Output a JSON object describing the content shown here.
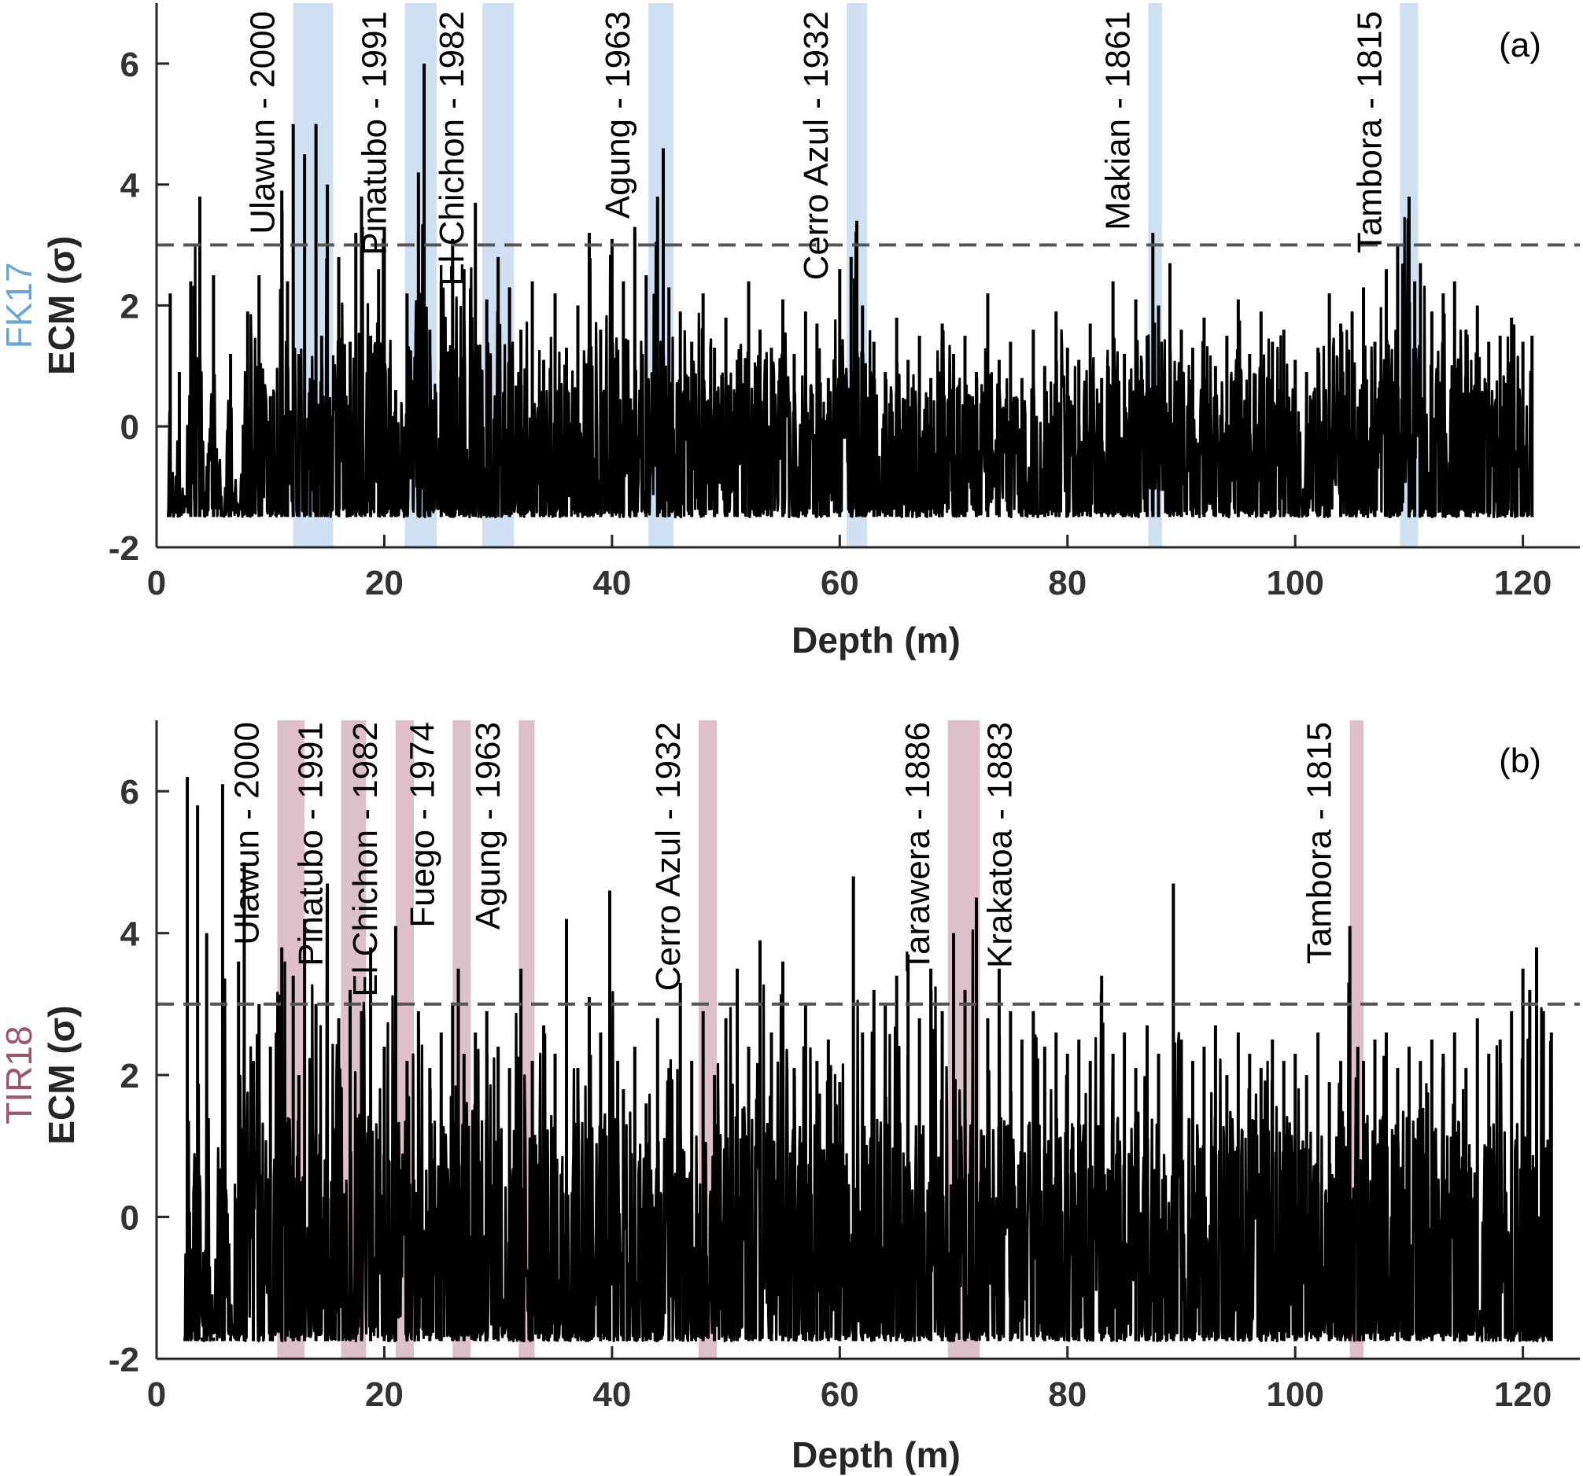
{
  "chart_data": [
    {
      "type": "line",
      "panel_label": "(a)",
      "core_name": "FK17",
      "core_color": "#6ca6d9",
      "band_color": "#cfe0f2",
      "xlabel": "Depth (m)",
      "ylabel": "ECM (σ)",
      "xlim": [
        0,
        125
      ],
      "ylim": [
        -2,
        7
      ],
      "xticks": [
        0,
        20,
        40,
        60,
        80,
        100,
        120
      ],
      "yticks": [
        -2,
        0,
        2,
        4,
        6
      ],
      "threshold": 3,
      "series": [
        {
          "x": [
            1.0,
            1.2,
            1.5,
            2.0,
            2.4,
            3.0,
            3.8,
            4.2,
            5.0,
            5.8,
            6.5,
            7.2,
            8.0,
            9.0,
            10.0,
            11.0,
            11.5,
            12.0,
            12.5,
            13.0,
            13.5,
            14.0,
            14.5,
            15.0,
            16.0,
            17.0,
            17.5,
            18.0,
            18.8,
            19.5,
            20.0,
            21.0,
            22.0,
            23.0,
            23.5,
            24.0,
            25.0,
            26.0,
            27.0,
            28.0,
            29.0,
            30.0,
            31.0,
            32.0,
            33.0,
            34.0,
            35.0,
            36.0,
            37.0,
            38.0,
            39.0,
            40.0,
            41.0,
            42.0,
            43.0,
            44.0,
            44.5,
            45.0,
            46.0,
            47.0,
            48.0,
            49.0,
            50.0,
            51.0,
            52.0,
            53.0,
            54.0,
            55.0,
            56.0,
            57.0,
            58.0,
            59.0,
            60.0,
            61.0,
            61.5,
            62.0,
            63.0,
            64.0,
            65.0,
            66.0,
            67.0,
            68.0,
            69.0,
            70.0,
            71.0,
            72.0,
            73.0,
            74.0,
            75.0,
            76.0,
            77.0,
            78.0,
            79.0,
            80.0,
            81.0,
            82.0,
            83.0,
            84.0,
            85.0,
            86.0,
            87.0,
            87.5,
            88.0,
            89.0,
            90.0,
            91.0,
            92.0,
            93.0,
            94.0,
            95.0,
            96.0,
            97.0,
            98.0,
            99.0,
            100.0,
            101.0,
            102.0,
            103.0,
            104.0,
            105.0,
            106.0,
            107.0,
            108.0,
            109.0,
            110.0,
            110.5,
            111.0,
            112.0,
            113.0,
            114.0,
            115.0,
            116.0,
            117.0,
            118.0,
            119.0,
            120.0,
            120.8
          ],
          "y": [
            -1.5,
            2.2,
            -1.5,
            0.9,
            -1.5,
            2.4,
            3.8,
            -1.5,
            2.5,
            -1.5,
            1.2,
            -1.5,
            1.9,
            2.5,
            0.5,
            3.9,
            2.4,
            5.0,
            1.2,
            4.5,
            0.8,
            5.0,
            1.5,
            4.0,
            2.8,
            1.4,
            3.2,
            3.8,
            1.5,
            2.6,
            3.3,
            0.6,
            2.2,
            4.2,
            6.0,
            1.6,
            2.4,
            3.1,
            2.6,
            3.7,
            2.1,
            2.8,
            2.3,
            1.6,
            2.4,
            1.1,
            2.2,
            1.3,
            2.0,
            3.2,
            1.6,
            3.1,
            2.4,
            3.3,
            2.5,
            3.8,
            4.6,
            2.3,
            1.9,
            1.4,
            2.2,
            1.3,
            1.8,
            1.1,
            2.4,
            1.6,
            1.3,
            2.1,
            1.2,
            1.9,
            1.7,
            0.8,
            2.6,
            2.8,
            3.4,
            2.0,
            1.4,
            0.9,
            1.8,
            1.1,
            1.5,
            0.8,
            1.7,
            1.2,
            1.5,
            0.9,
            2.2,
            1.1,
            1.4,
            0.8,
            1.6,
            1.0,
            1.9,
            1.3,
            1.1,
            1.7,
            0.8,
            2.4,
            1.2,
            2.1,
            1.5,
            3.2,
            2.0,
            2.7,
            1.6,
            1.3,
            1.8,
            1.0,
            1.5,
            2.1,
            1.2,
            1.9,
            1.4,
            1.6,
            1.1,
            0.9,
            1.3,
            2.2,
            1.7,
            1.9,
            2.3,
            1.4,
            2.6,
            3.0,
            3.8,
            2.4,
            2.7,
            1.9,
            2.2,
            2.4,
            1.6,
            2.0,
            1.4,
            1.5,
            1.8,
            1.4,
            1.5
          ]
        }
      ],
      "events": [
        {
          "label": "Ulawun - 2000",
          "from": 12.0,
          "to": 15.5
        },
        {
          "label": "Pinatubo - 1991",
          "from": 21.8,
          "to": 24.6
        },
        {
          "label": "El Chichon - 1982",
          "from": 28.6,
          "to": 31.4
        },
        {
          "label": "Agung - 1963",
          "from": 43.2,
          "to": 45.4
        },
        {
          "label": "Cerro Azul - 1932",
          "from": 60.6,
          "to": 62.4
        },
        {
          "label": "Makian - 1861",
          "from": 87.1,
          "to": 88.3
        },
        {
          "label": "Tambora - 1815",
          "from": 109.2,
          "to": 110.8
        }
      ]
    },
    {
      "type": "line",
      "panel_label": "(b)",
      "core_name": "TIR18",
      "core_color": "#9c5472",
      "band_color": "#dec0cd",
      "xlabel": "Depth (m)",
      "ylabel": "ECM (σ)",
      "xlim": [
        0,
        125
      ],
      "ylim": [
        -2,
        7
      ],
      "xticks": [
        0,
        20,
        40,
        60,
        80,
        100,
        120
      ],
      "yticks": [
        -2,
        0,
        2,
        4,
        6
      ],
      "threshold": 3,
      "series": [
        {
          "x": [
            2.5,
            2.7,
            3.0,
            3.6,
            4.0,
            4.4,
            5.0,
            5.8,
            6.5,
            7.2,
            7.7,
            8.5,
            9.0,
            10.0,
            11.0,
            12.0,
            12.5,
            13.0,
            14.0,
            15.0,
            16.0,
            17.0,
            18.0,
            18.8,
            20.0,
            21.0,
            22.0,
            23.0,
            24.0,
            25.0,
            26.0,
            26.5,
            27.0,
            28.0,
            29.0,
            30.0,
            31.0,
            32.0,
            33.0,
            34.0,
            35.0,
            36.0,
            37.0,
            38.0,
            39.0,
            39.8,
            40.5,
            41.0,
            42.0,
            43.0,
            44.0,
            45.0,
            46.0,
            47.0,
            48.0,
            49.0,
            50.0,
            51.0,
            52.0,
            53.0,
            54.0,
            55.0,
            56.0,
            57.0,
            58.0,
            59.0,
            60.0,
            61.2,
            62.0,
            63.0,
            64.0,
            65.0,
            66.0,
            67.0,
            68.0,
            69.0,
            70.0,
            71.0,
            72.0,
            73.0,
            74.0,
            75.0,
            76.0,
            77.0,
            78.0,
            79.0,
            80.0,
            81.0,
            82.0,
            83.0,
            84.0,
            85.0,
            86.0,
            87.0,
            88.0,
            89.3,
            90.0,
            91.0,
            92.0,
            93.0,
            94.0,
            95.0,
            96.0,
            97.0,
            98.0,
            99.0,
            100.0,
            101.0,
            102.0,
            103.0,
            104.0,
            104.8,
            105.5,
            106.0,
            107.0,
            108.0,
            109.0,
            110.0,
            111.0,
            112.0,
            113.0,
            114.0,
            115.0,
            116.0,
            117.0,
            118.0,
            119.0,
            120.0,
            120.6,
            121.2,
            121.8,
            122.5
          ],
          "y": [
            -1.7,
            6.2,
            -1.7,
            5.8,
            -1.7,
            4.0,
            -1.7,
            6.1,
            -1.7,
            3.6,
            5.0,
            2.2,
            3.0,
            2.4,
            3.8,
            3.4,
            2.0,
            4.2,
            3.0,
            4.7,
            2.8,
            3.2,
            2.9,
            3.8,
            2.4,
            4.1,
            2.2,
            2.9,
            2.1,
            2.6,
            3.0,
            3.5,
            2.3,
            2.6,
            2.9,
            2.4,
            2.1,
            3.5,
            2.2,
            2.7,
            2.3,
            4.2,
            2.1,
            3.1,
            2.6,
            4.6,
            2.2,
            1.8,
            2.4,
            1.6,
            2.8,
            2.1,
            3.3,
            2.2,
            2.9,
            2.0,
            2.8,
            3.5,
            2.4,
            3.9,
            2.6,
            3.6,
            2.1,
            3.0,
            2.2,
            2.5,
            1.9,
            4.8,
            2.6,
            3.2,
            3.0,
            3.4,
            3.7,
            2.8,
            3.5,
            2.9,
            4.0,
            3.2,
            4.5,
            2.8,
            3.5,
            2.9,
            2.5,
            2.9,
            2.4,
            2.6,
            2.3,
            2.5,
            2.2,
            3.4,
            2.3,
            2.6,
            2.1,
            2.7,
            2.3,
            4.7,
            2.5,
            2.2,
            2.4,
            2.7,
            2.0,
            2.6,
            2.3,
            2.1,
            2.5,
            2.2,
            2.3,
            2.0,
            2.6,
            1.9,
            2.2,
            4.1,
            2.4,
            2.2,
            2.5,
            2.6,
            2.1,
            2.4,
            2.2,
            2.5,
            2.3,
            2.6,
            2.1,
            2.8,
            2.3,
            2.5,
            2.9,
            3.5,
            3.2,
            3.8,
            2.9,
            2.6
          ]
        }
      ],
      "events": [
        {
          "label": "Ulawun - 2000",
          "from": 10.6,
          "to": 13.0
        },
        {
          "label": "Pinatubo - 1991",
          "from": 16.2,
          "to": 18.4
        },
        {
          "label": "El Chichon - 1982",
          "from": 21.0,
          "to": 22.6
        },
        {
          "label": "Fuego - 1974",
          "from": 26.0,
          "to": 27.6
        },
        {
          "label": "Agung - 1963",
          "from": 31.8,
          "to": 33.2
        },
        {
          "label": "Cerro Azul - 1932",
          "from": 47.6,
          "to": 49.2
        },
        {
          "label": "Tarawera - 1886",
          "from": 69.5,
          "to": 72.3
        },
        {
          "label": "Krakatoa - 1883",
          "from": 69.5,
          "to": 72.3
        },
        {
          "label": "Tambora - 1815",
          "from": 104.8,
          "to": 106.0
        }
      ]
    }
  ]
}
